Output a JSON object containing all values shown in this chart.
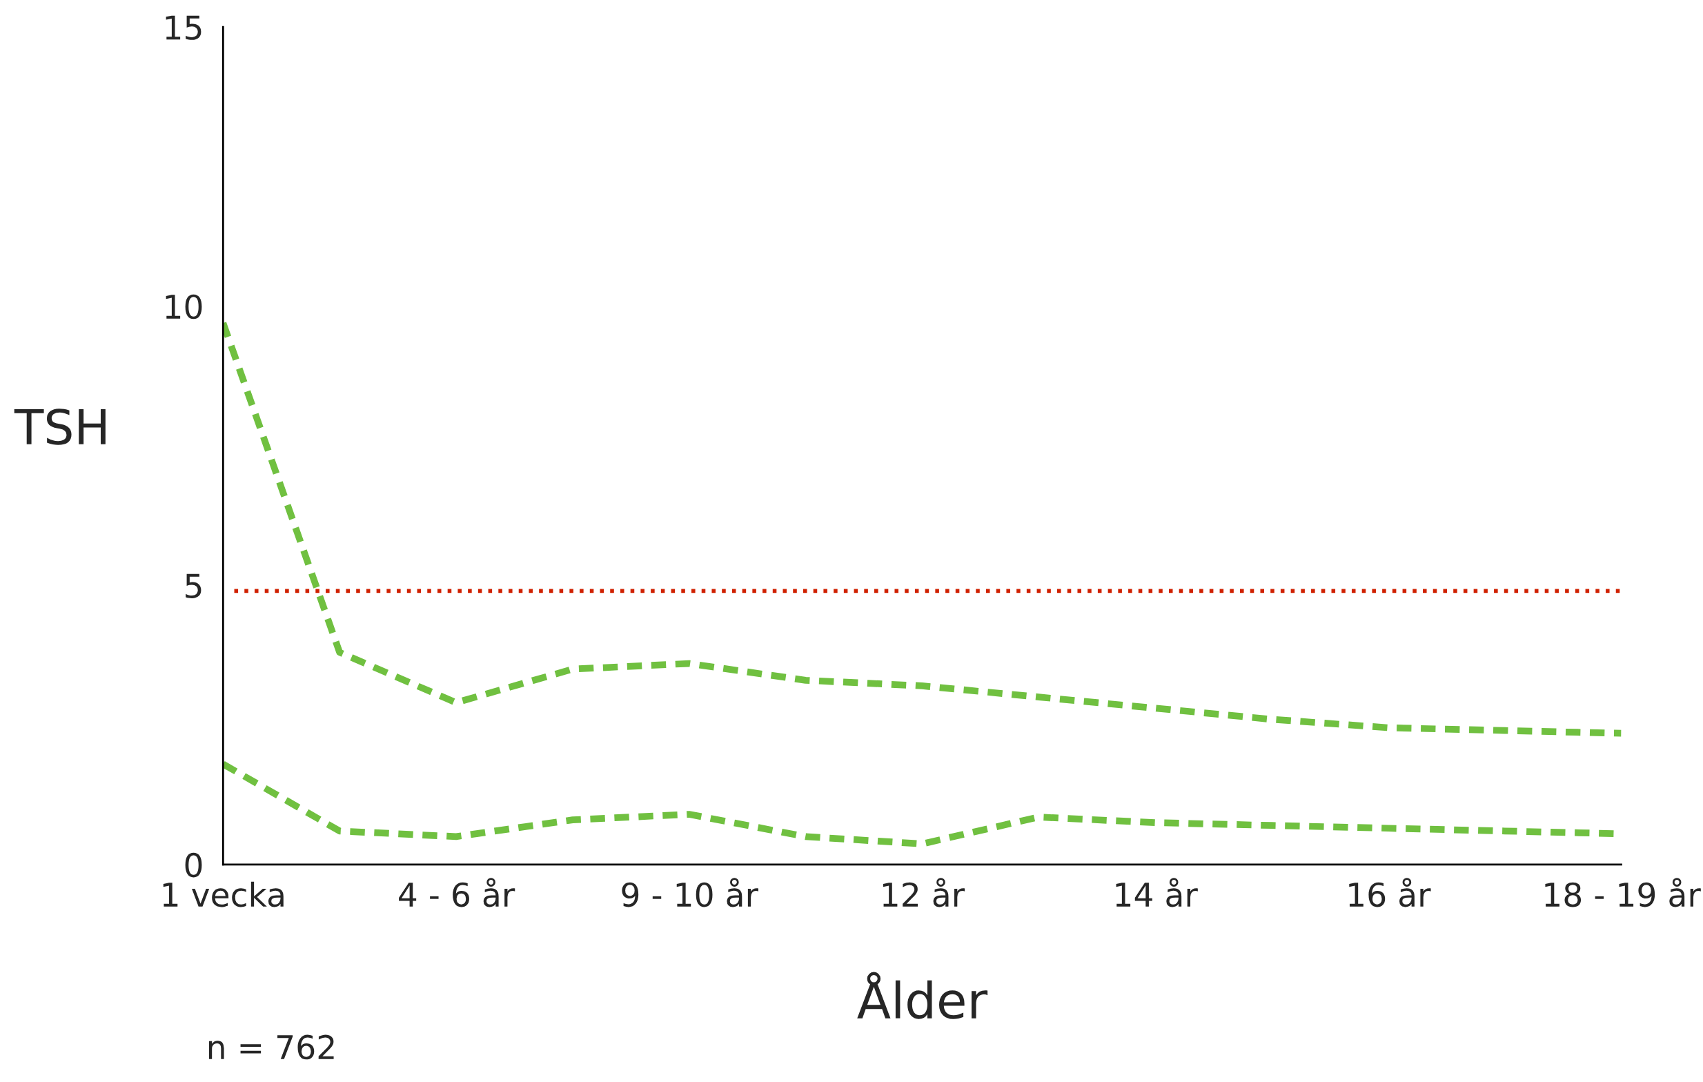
{
  "chart_data": {
    "type": "line",
    "ylabel": "TSH",
    "xlabel": "Ålder",
    "categories": [
      "1 vecka",
      null,
      "4 - 6 år",
      null,
      "9 - 10 år",
      null,
      "12 år",
      null,
      "14 år",
      null,
      "16 år",
      null,
      "18 - 19 år"
    ],
    "series": [
      {
        "color": "#70c040",
        "values": [
          9.7,
          3.8,
          2.9,
          3.5,
          3.6,
          3.3,
          3.2,
          3.0,
          2.8,
          2.6,
          2.45,
          2.4,
          2.35
        ]
      },
      {
        "color": "#70c040",
        "values": [
          1.8,
          0.6,
          0.5,
          0.8,
          0.9,
          0.5,
          0.37,
          0.85,
          0.75,
          0.7,
          0.65,
          0.6,
          0.55
        ]
      }
    ],
    "line_style": "dashed",
    "marker": "none",
    "ref_lines": [
      {
        "axis": "y",
        "value": 4.9,
        "color": "#d02000",
        "line_style": "dotted"
      }
    ],
    "ylim": [
      0,
      15
    ],
    "yticks": [
      0,
      5,
      10,
      15
    ],
    "grid": false,
    "legend": false,
    "annotations": [
      "n = 762"
    ]
  }
}
